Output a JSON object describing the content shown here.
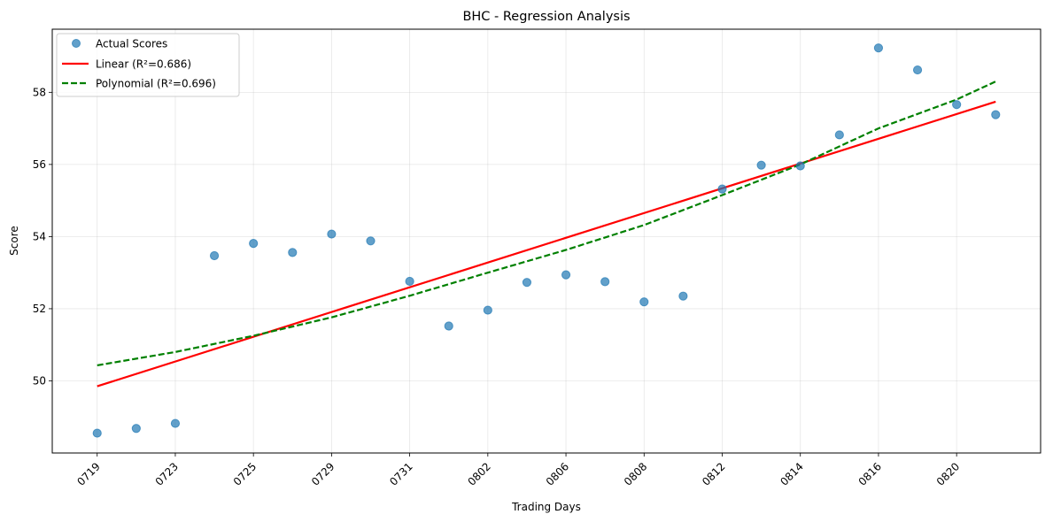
{
  "chart_data": {
    "type": "scatter",
    "title": "BHC - Regression Analysis",
    "xlabel": "Trading Days",
    "ylabel": "Score",
    "x_tick_labels": [
      "0719",
      "0723",
      "0725",
      "0729",
      "0731",
      "0802",
      "0806",
      "0808",
      "0812",
      "0814",
      "0816",
      "0820"
    ],
    "x_tick_indices": [
      0,
      2,
      4,
      6,
      8,
      10,
      12,
      14,
      16,
      18,
      20,
      22
    ],
    "xlim": [
      -1.15,
      24.15
    ],
    "ylim": [
      48.0,
      59.75
    ],
    "y_ticks": [
      50,
      52,
      54,
      56,
      58
    ],
    "grid": true,
    "legend_position": "top-left",
    "series": [
      {
        "name": "Actual Scores",
        "kind": "scatter",
        "color": "#1f77b4",
        "x": [
          0,
          1,
          2,
          3,
          4,
          5,
          6,
          7,
          8,
          9,
          10,
          11,
          12,
          13,
          14,
          15,
          16,
          17,
          18,
          19,
          20,
          21,
          22,
          23
        ],
        "y": [
          48.55,
          48.68,
          48.82,
          53.47,
          53.81,
          53.56,
          54.07,
          53.88,
          52.76,
          51.52,
          51.96,
          52.73,
          52.94,
          52.75,
          52.19,
          52.35,
          55.32,
          55.98,
          55.96,
          56.82,
          59.23,
          58.62,
          57.66,
          57.38
        ]
      },
      {
        "name": "Linear (R²=0.686)",
        "kind": "line",
        "color": "#ff0000",
        "style": "solid",
        "x": [
          0,
          23
        ],
        "y": [
          49.85,
          57.74
        ]
      },
      {
        "name": "Polynomial (R²=0.696)",
        "kind": "line",
        "color": "#008000",
        "style": "dashed",
        "x": [
          0,
          2,
          4,
          6,
          8,
          10,
          12,
          14,
          16,
          18,
          20,
          22,
          23
        ],
        "y": [
          50.43,
          50.8,
          51.25,
          51.76,
          52.36,
          53.0,
          53.63,
          54.32,
          55.15,
          56.0,
          57.0,
          57.8,
          58.3
        ]
      }
    ]
  }
}
